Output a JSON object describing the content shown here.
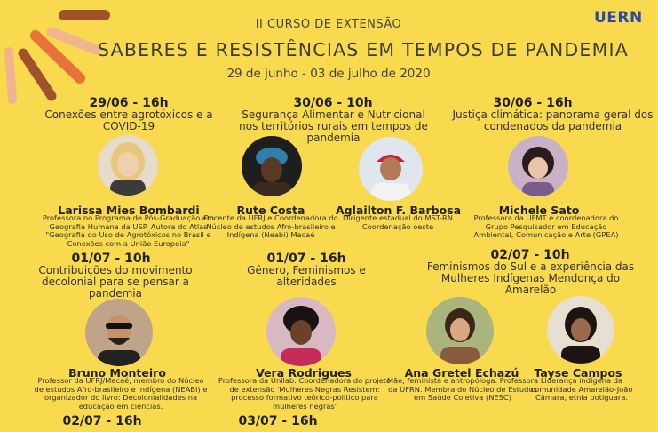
{
  "header": {
    "subtitle": "II CURSO DE EXTENSÃO",
    "title": "SABERES E RESISTÊNCIAS EM TEMPOS DE PANDEMIA",
    "dates": "29 de junho - 03 de julho de 2020",
    "logo": "UERN"
  },
  "colors": {
    "background": "#f9d94e",
    "ray_orange": "#e8733a",
    "ray_brown": "#a0522d",
    "ray_peach": "#f1b58e",
    "logo": "#2e4aa8"
  },
  "sessions": [
    {
      "date": "29/06 - 16h",
      "topic": "Conexões entre agrotóxicos e a COVID-19"
    },
    {
      "date": "30/06 - 10h",
      "topic": "Segurança Alimentar e Nutricional nos territórios rurais em tempos de pandemia"
    },
    {
      "date": "30/06 - 16h",
      "topic": "Justiça climática: panorama geral dos condenados da pandemia"
    },
    {
      "date": "01/07 - 10h",
      "topic": "Contribuições do movimento decolonial para se pensar a pandemia"
    },
    {
      "date": "01/07 - 16h",
      "topic": "Gênero, Feminismos e alteridades"
    },
    {
      "date": "02/07 - 10h",
      "topic": "Feminismos do Sul e a experiência das Mulheres Indígenas Mendonça do Amarelão"
    },
    {
      "date": "02/07 - 16h",
      "topic": ""
    },
    {
      "date": "03/07 - 16h",
      "topic": ""
    }
  ],
  "speakers": [
    {
      "name": "Larissa Mies Bombardi",
      "desc": "Professora no Programa de Pós-Graduação em Geografia Humana da USP. Autora do Atlas \"Geografia do Uso de Agrotóxicos no Brasil e Conexões com a União Europeia\""
    },
    {
      "name": "Rute Costa",
      "desc": "Docente da UFRJ e Coordenadora do Núcleo de estudos Afro-brasileiro e Indígena (Neabi) Macaé"
    },
    {
      "name": "Aglailton F. Barbosa",
      "desc": "Dirigente estadual do MST-RN Coordenação oeste"
    },
    {
      "name": "Michele Sato",
      "desc": "Professora da UFMT e coordenadora do Grupo Pesquisador em Educação Ambiental, Comunicação e Arte (GPEA)"
    },
    {
      "name": "Bruno Monteiro",
      "desc": "Professor da UFRJ/Macaé, membro do Núcleo de estudos Afro-brasileiro e Indígena (NEABI) e organizador do livro: Decolonialidades na educação em ciências."
    },
    {
      "name": "Vera Rodrigues",
      "desc": "Professora da Unilab. Coordenadora do projeto de extensão 'Mulheres Negras Resistem: processo formativo teórico-político para mulheres negras'"
    },
    {
      "name": "Ana Gretel Echazú",
      "desc": "Mãe, feminista e antropóloga. Professora da UFRN. Membra do Núcleo de Estudos em Saúde Coletiva (NESC)"
    },
    {
      "name": "Tayse Campos",
      "desc": "Liderança indígena da comunidade Amarelão-João Câmara, etnia potiguara."
    }
  ]
}
